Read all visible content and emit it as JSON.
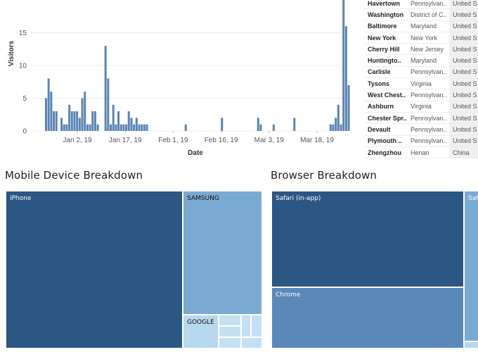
{
  "chart_data": {
    "type": "bar",
    "xlabel": "Date",
    "ylabel": "Visitors",
    "ylim": [
      0,
      20
    ],
    "yticks": [
      0,
      5,
      10,
      15
    ],
    "xticks": [
      "Jan 2, 19",
      "Jan 17, 19",
      "Feb 1, 19",
      "Feb 16, 19",
      "Mar 3, 19",
      "Mar 18, 19"
    ],
    "x_start": "Dec 22, 18",
    "grid": true,
    "bar_color": "#5b84b5",
    "values": [
      5,
      8,
      6,
      3,
      3,
      0,
      2,
      1,
      1,
      4,
      3,
      3,
      3,
      2,
      5,
      6,
      1,
      1,
      3,
      3,
      1,
      0,
      0,
      13,
      8,
      1,
      4,
      1,
      3,
      1,
      1,
      1,
      3,
      2,
      1,
      2,
      1,
      1,
      1,
      1,
      0,
      0,
      0,
      0,
      0,
      0,
      0,
      0,
      0,
      0,
      0,
      0,
      0,
      0,
      1,
      0,
      0,
      0,
      0,
      0,
      0,
      0,
      0,
      0,
      0,
      0,
      0,
      0,
      2,
      0,
      0,
      0,
      0,
      0,
      0,
      0,
      0,
      0,
      0,
      0,
      0,
      0,
      2,
      1,
      0,
      0,
      0,
      0,
      1,
      0,
      0,
      0,
      0,
      0,
      0,
      0,
      2,
      0,
      0,
      0,
      0,
      0,
      0,
      0,
      0,
      0,
      0,
      0,
      0,
      0,
      1,
      1,
      2,
      4,
      1,
      20,
      16,
      7
    ]
  },
  "city_table": {
    "rows": [
      {
        "city": "Havertown",
        "state": "Pennsylvan..",
        "country": "United S"
      },
      {
        "city": "Washington",
        "state": "District of C..",
        "country": "United S"
      },
      {
        "city": "Baltimore",
        "state": "Maryland",
        "country": "United S"
      },
      {
        "city": "New York",
        "state": "New York",
        "country": "United S"
      },
      {
        "city": "Cherry Hill",
        "state": "New Jersey",
        "country": "United S"
      },
      {
        "city": "Huntingto..",
        "state": "Maryland",
        "country": "United S"
      },
      {
        "city": "Carlisle",
        "state": "Pennsylvan..",
        "country": "United S"
      },
      {
        "city": "Tysons",
        "state": "Virginia",
        "country": "United S"
      },
      {
        "city": "West Chest..",
        "state": "Pennsylvan..",
        "country": "United S"
      },
      {
        "city": "Ashburn",
        "state": "Virginia",
        "country": "United S"
      },
      {
        "city": "Chester Spr..",
        "state": "Pennsylvan..",
        "country": "United S"
      },
      {
        "city": "Devault",
        "state": "Pennsylvan..",
        "country": "United S"
      },
      {
        "city": "Plymouth ..",
        "state": "Pennsylvan..",
        "country": "United S"
      },
      {
        "city": "Zhengzhou",
        "state": "Henan",
        "country": "China"
      }
    ]
  },
  "mobile_breakdown": {
    "title": "Mobile Device Breakdown",
    "tiles": [
      {
        "label": "iPhone",
        "color": "#2c5684"
      },
      {
        "label": "SAMSUNG",
        "color": "#7aaad2"
      },
      {
        "label": "GOOGLE",
        "color": "#b8d8ee"
      },
      {
        "label": "",
        "color": "#c5e0f2"
      },
      {
        "label": "",
        "color": "#c5e0f2"
      },
      {
        "label": "",
        "color": "#c5e0f2"
      },
      {
        "label": "",
        "color": "#c5e0f2"
      },
      {
        "label": "",
        "color": "#c5e0f2"
      },
      {
        "label": "",
        "color": "#c5e0f2"
      }
    ]
  },
  "browser_breakdown": {
    "title": "Browser Breakdown",
    "tiles": [
      {
        "label": "Safari (in-app)",
        "color": "#2c5684"
      },
      {
        "label": "Chrome",
        "color": "#5a89b9"
      },
      {
        "label": "Safa",
        "color": "#7aaad2"
      },
      {
        "label": "",
        "color": "#b8d8ee"
      }
    ]
  }
}
